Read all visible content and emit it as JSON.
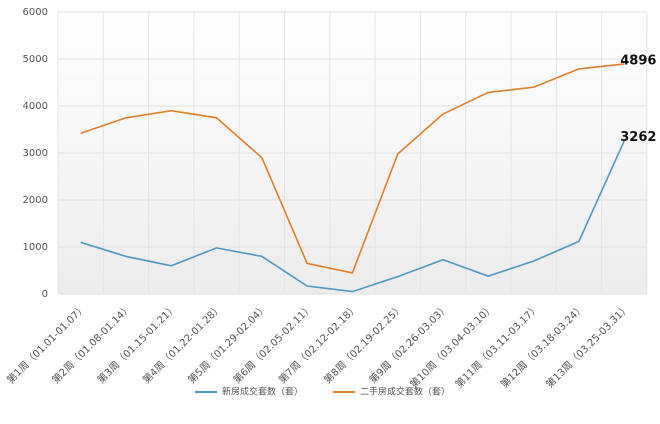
{
  "chart_data": {
    "type": "line",
    "categories": [
      "第1周（01.01-01.07）",
      "第2周（01.08-01.14）",
      "第3周（01.15-01.21）",
      "第4周（01.22-01.28）",
      "第5周（01.29-02.04）",
      "第6周（02.05-02.11）",
      "第7周（02.12-02.18）",
      "第8周（02.19-02.25）",
      "第9周（02.26-03.03）",
      "第10周（03.04-03.10）",
      "第11周（03.11-03.17）",
      "第12周（03.18-03.24）",
      "第13周（03.25-03.31）"
    ],
    "series": [
      {
        "name": "新房成交套数（套）",
        "color": "#4e97c0",
        "values": [
          1100,
          800,
          600,
          980,
          800,
          170,
          50,
          370,
          730,
          380,
          700,
          1120,
          3262
        ]
      },
      {
        "name": "二手房成交套数（套）",
        "color": "#e07f2a",
        "values": [
          3420,
          3750,
          3900,
          3750,
          2900,
          650,
          450,
          2980,
          3830,
          4290,
          4400,
          4790,
          4896
        ]
      }
    ],
    "ylim": [
      0,
      6000
    ],
    "yticks": [
      0,
      1000,
      2000,
      3000,
      4000,
      5000,
      6000
    ],
    "grid": true,
    "legend": "bottom",
    "label_last_point": true
  }
}
